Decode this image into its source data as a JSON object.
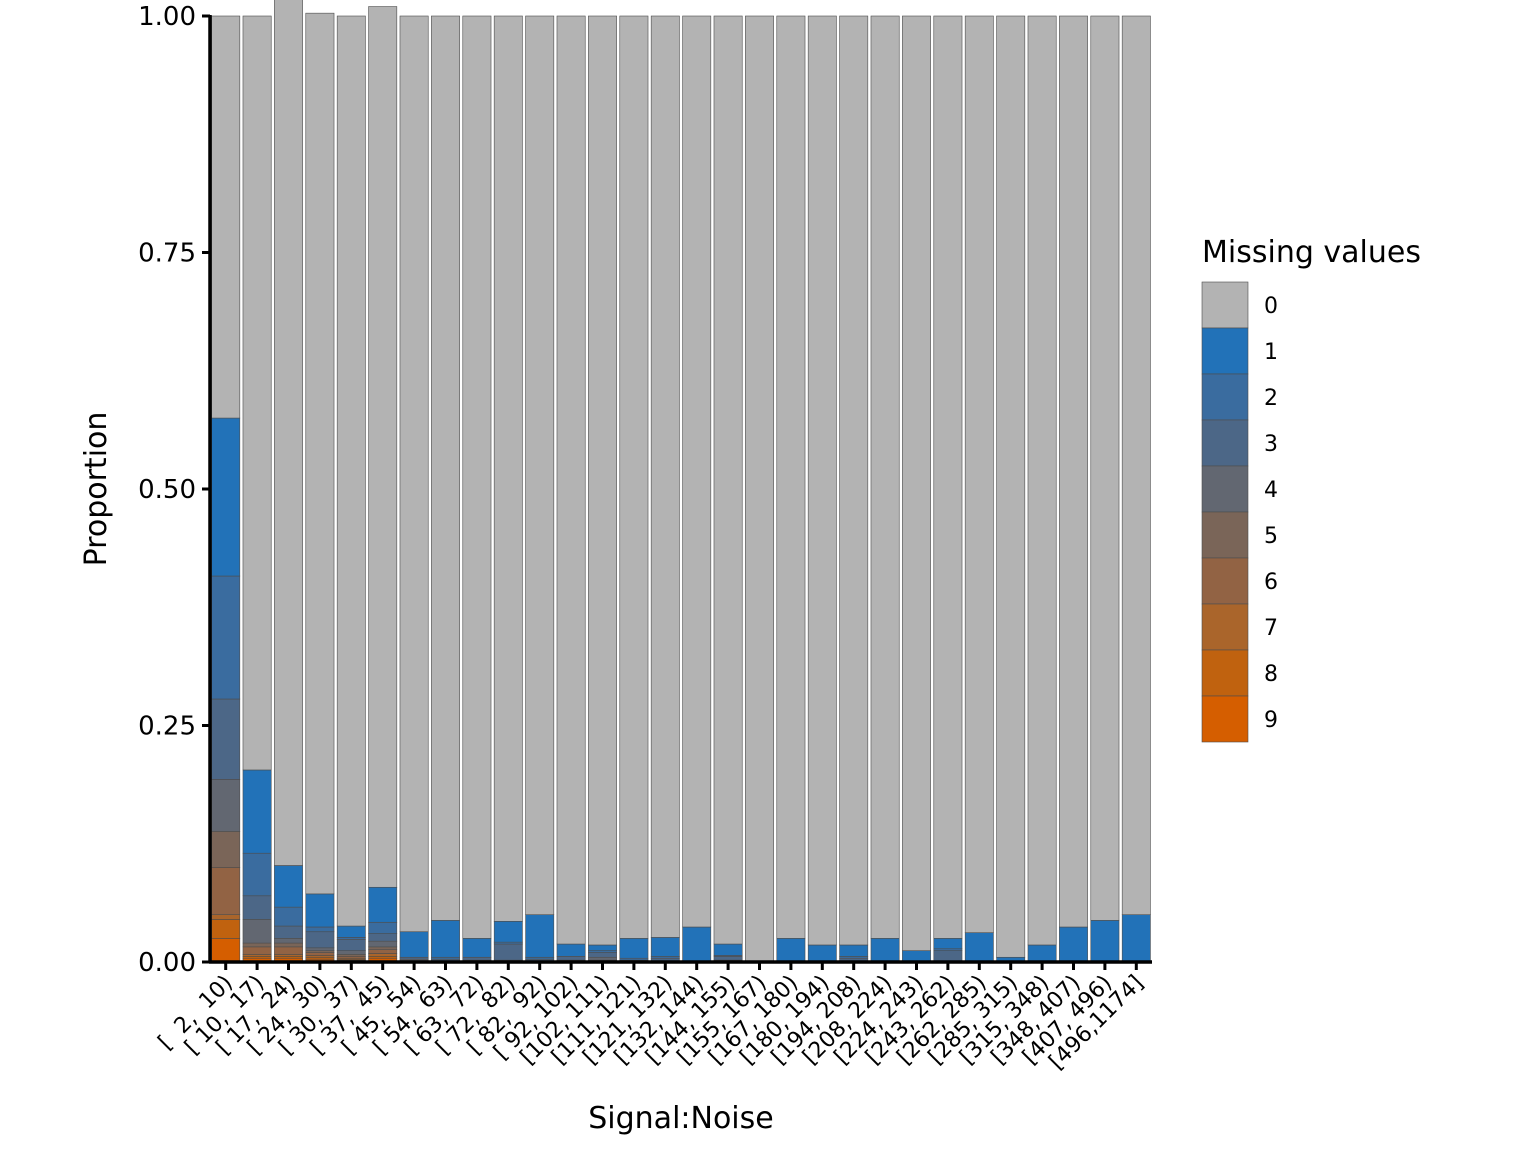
{
  "chart_data": {
    "type": "bar",
    "stacked": true,
    "xlabel": "Signal:Noise",
    "ylabel": "Proportion",
    "ylim": [
      0,
      1
    ],
    "yticks": [
      "0.00",
      "0.25",
      "0.50",
      "0.75",
      "1.00"
    ],
    "ytick_values": [
      0,
      0.25,
      0.5,
      0.75,
      1
    ],
    "grid": false,
    "legend": {
      "title": "Missing values",
      "position": "right"
    },
    "categories": [
      "[  2,  10)",
      "[ 10,  17)",
      "[ 17,  24)",
      "[ 24,  30)",
      "[ 30,  37)",
      "[ 37,  45)",
      "[ 45,  54)",
      "[ 54,  63)",
      "[ 63,  72)",
      "[ 72,  82)",
      "[ 82,  92)",
      "[ 92, 102)",
      "[102, 111)",
      "[111, 121)",
      "[121, 132)",
      "[132, 144)",
      "[144, 155)",
      "[155, 167)",
      "[167, 180)",
      "[180, 194)",
      "[194, 208)",
      "[208, 224)",
      "[224, 243)",
      "[243, 262)",
      "[262, 285)",
      "[285, 315)",
      "[315, 348)",
      "[348, 407)",
      "[407, 496)",
      "[496,1174]"
    ],
    "series": [
      {
        "name": "9",
        "color": "#D55E00",
        "values": [
          0.025,
          0.004,
          0.004,
          0.003,
          0.002,
          0.004,
          0,
          0,
          0,
          0,
          0,
          0,
          0,
          0,
          0,
          0,
          0,
          0,
          0,
          0,
          0,
          0,
          0,
          0,
          0,
          0,
          0,
          0,
          0,
          0
        ]
      },
      {
        "name": "8",
        "color": "#C0620F",
        "values": [
          0.02,
          0.002,
          0.002,
          0.002,
          0.001,
          0.002,
          0,
          0,
          0,
          0,
          0,
          0,
          0,
          0,
          0,
          0,
          0,
          0,
          0,
          0,
          0,
          0,
          0,
          0,
          0,
          0,
          0,
          0,
          0,
          0
        ]
      },
      {
        "name": "7",
        "color": "#AA652B",
        "values": [
          0.005,
          0.002,
          0.002,
          0.002,
          0.001,
          0.003,
          0,
          0,
          0,
          0,
          0,
          0,
          0,
          0,
          0,
          0,
          0,
          0,
          0,
          0,
          0,
          0,
          0,
          0,
          0,
          0,
          0,
          0,
          0,
          0
        ]
      },
      {
        "name": "6",
        "color": "#926344",
        "values": [
          0.05,
          0.008,
          0.008,
          0.003,
          0.002,
          0.004,
          0,
          0,
          0,
          0,
          0,
          0,
          0,
          0,
          0,
          0,
          0,
          0,
          0,
          0,
          0,
          0,
          0,
          0,
          0,
          0,
          0,
          0,
          0,
          0
        ]
      },
      {
        "name": "5",
        "color": "#7A6558",
        "values": [
          0.038,
          0.004,
          0.004,
          0.002,
          0.002,
          0.003,
          0.001,
          0,
          0,
          0,
          0,
          0,
          0.002,
          0,
          0,
          0,
          0,
          0,
          0,
          0,
          0,
          0,
          0,
          0,
          0,
          0,
          0,
          0,
          0,
          0
        ]
      },
      {
        "name": "4",
        "color": "#626771",
        "values": [
          0.055,
          0.025,
          0.005,
          0.003,
          0.004,
          0.006,
          0.002,
          0,
          0.002,
          0.002,
          0,
          0.002,
          0.003,
          0,
          0,
          0,
          0.002,
          0,
          0,
          0,
          0,
          0,
          0,
          0,
          0,
          0,
          0,
          0,
          0,
          0
        ]
      },
      {
        "name": "3",
        "color": "#4C6787",
        "values": [
          0.085,
          0.025,
          0.013,
          0.017,
          0.012,
          0.008,
          0.002,
          0.003,
          0.003,
          0.017,
          0.003,
          0.004,
          0.005,
          0.002,
          0.004,
          0,
          0.004,
          0,
          0,
          0,
          0.004,
          0,
          0,
          0.012,
          0,
          0,
          0,
          0,
          0,
          0
        ]
      },
      {
        "name": "2",
        "color": "#3A6C9F",
        "values": [
          0.13,
          0.045,
          0.02,
          0.005,
          0.002,
          0.012,
          0,
          0.002,
          0,
          0.002,
          0.002,
          0,
          0.002,
          0.002,
          0.002,
          0,
          0.001,
          0,
          0,
          0,
          0.002,
          0,
          0,
          0.002,
          0,
          0,
          0,
          0,
          0,
          0
        ]
      },
      {
        "name": "1",
        "color": "#2272B8",
        "values": [
          0.167,
          0.088,
          0.044,
          0.035,
          0.012,
          0.037,
          0.027,
          0.039,
          0.02,
          0.022,
          0.045,
          0.013,
          0.006,
          0.021,
          0.02,
          0.037,
          0.012,
          0,
          0.025,
          0.018,
          0.012,
          0.025,
          0.012,
          0.011,
          0.031,
          0.005,
          0.018,
          0.037,
          0.044,
          0.05
        ]
      },
      {
        "name": "0",
        "color": "#B3B3B3",
        "values": [
          0.425,
          0.797,
          0.918,
          0.931,
          0.962,
          0.931,
          0.968,
          0.956,
          0.975,
          0.957,
          0.95,
          0.981,
          0.982,
          0.975,
          0.974,
          0.963,
          0.981,
          1.0,
          0.975,
          0.982,
          0.982,
          0.975,
          0.988,
          0.975,
          0.969,
          0.995,
          0.982,
          0.963,
          0.956,
          0.95
        ]
      }
    ]
  }
}
